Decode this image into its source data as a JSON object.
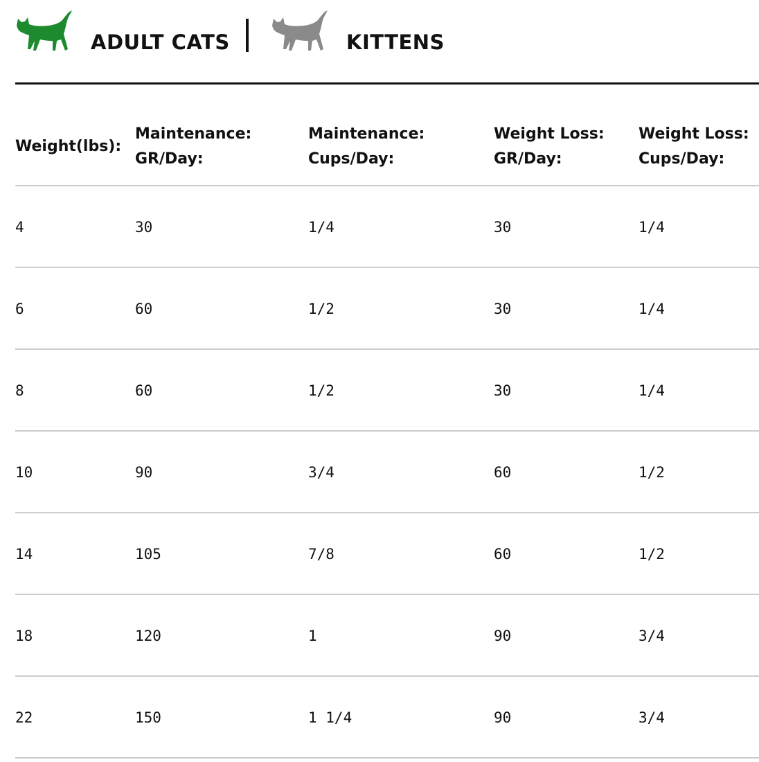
{
  "tabs": [
    {
      "label": "ADULT CATS",
      "active": true
    },
    {
      "label": "KITTENS",
      "active": false
    }
  ],
  "table": {
    "headers": [
      [
        "Weight(lbs):"
      ],
      [
        "Maintenance:",
        "GR/Day:"
      ],
      [
        "Maintenance:",
        "Cups/Day:"
      ],
      [
        "Weight Loss:",
        "GR/Day:"
      ],
      [
        "Weight Loss:",
        "Cups/Day:"
      ]
    ],
    "rows": [
      [
        "4",
        "30",
        "1/4",
        "30",
        "1/4"
      ],
      [
        "6",
        "60",
        "1/2",
        "30",
        "1/4"
      ],
      [
        "8",
        "60",
        "1/2",
        "30",
        "1/4"
      ],
      [
        "10",
        "90",
        "3/4",
        "60",
        "1/2"
      ],
      [
        "14",
        "105",
        "7/8",
        "60",
        "1/2"
      ],
      [
        "18",
        "120",
        "1",
        "90",
        "3/4"
      ],
      [
        "22",
        "150",
        "1 1/4",
        "90",
        "3/4"
      ]
    ]
  }
}
